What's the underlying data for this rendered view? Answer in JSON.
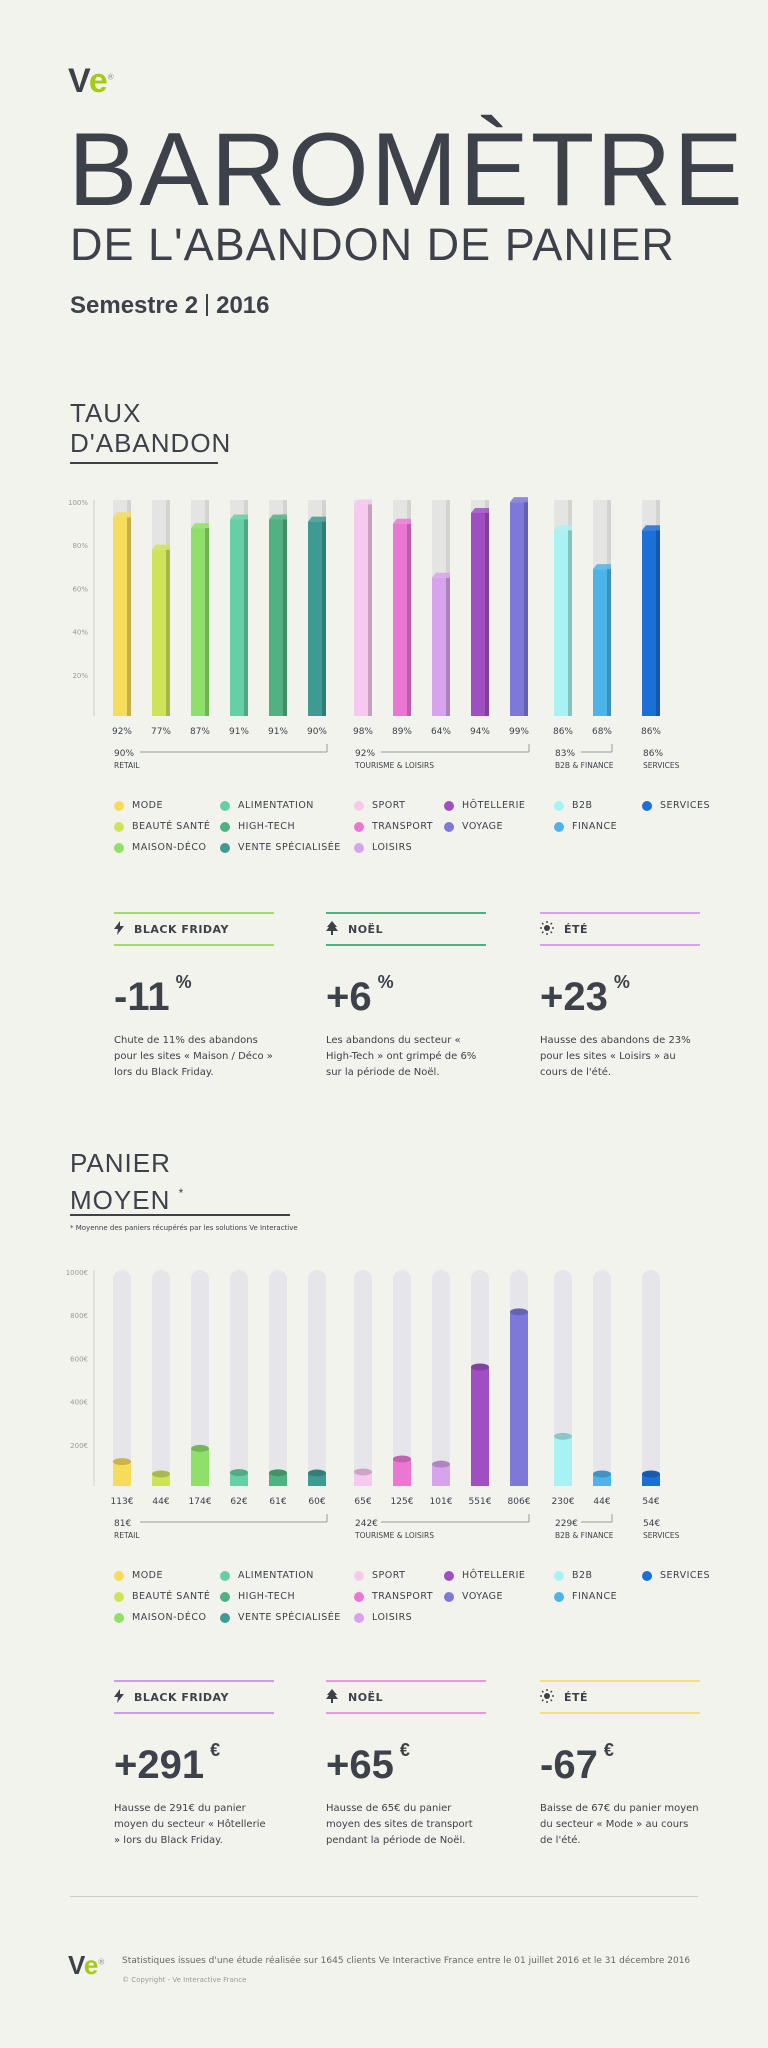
{
  "logo": {
    "v": "V",
    "e": "e",
    "reg": "®"
  },
  "title": {
    "big": "BAROMÈTRE",
    "sub": "DE L'ABANDON DE PANIER"
  },
  "semester": {
    "label": "Semestre 2",
    "year": "2016"
  },
  "section1": {
    "line1": "TAUX",
    "line2": "D'ABANDON"
  },
  "section2": {
    "line1": "PANIER",
    "line2": "MOYEN",
    "star": "*",
    "note": "* Moyenne des paniers récupérés par les solutions Ve Interactive"
  },
  "colors": {
    "MODE": "#f5dc5a",
    "BEAUTÉ SANTÉ": "#cfe35a",
    "MAISON-DÉCO": "#8fe06a",
    "ALIMENTATION": "#66cfa5",
    "HIGH-TECH": "#52b183",
    "VENTE SPÉCIALISÉE": "#3f9a94",
    "SPORT": "#f7c9ef",
    "TRANSPORT": "#ea78d2",
    "LOISIRS": "#d7a3ed",
    "HÔTELLERIE": "#9f4fc2",
    "VOYAGE": "#7e79d9",
    "B2B": "#a9f2f4",
    "FINANCE": "#4db4ea",
    "SERVICES": "#1c6fd6"
  },
  "chart_data": [
    {
      "type": "bar",
      "title": "TAUX D'ABANDON",
      "categories": [
        "MODE",
        "BEAUTÉ SANTÉ",
        "MAISON-DÉCO",
        "ALIMENTATION",
        "HIGH-TECH",
        "VENTE SPÉCIALISÉE",
        "SPORT",
        "TRANSPORT",
        "LOISIRS",
        "HÔTELLERIE",
        "VOYAGE",
        "B2B",
        "FINANCE",
        "SERVICES"
      ],
      "values": [
        92,
        77,
        87,
        91,
        91,
        90,
        98,
        89,
        64,
        94,
        99,
        86,
        68,
        86
      ],
      "value_labels": [
        "92%",
        "77%",
        "87%",
        "91%",
        "91%",
        "90%",
        "98%",
        "89%",
        "64%",
        "94%",
        "99%",
        "86%",
        "68%",
        "86%"
      ],
      "yticks": [
        "100%",
        "80%",
        "60%",
        "40%",
        "20%"
      ],
      "ylim": [
        0,
        100
      ],
      "groups": [
        {
          "name": "RETAIL",
          "total": "90%",
          "members": [
            0,
            1,
            2,
            3,
            4,
            5
          ]
        },
        {
          "name": "TOURISME & LOISIRS",
          "total": "92%",
          "members": [
            6,
            7,
            8,
            9,
            10
          ]
        },
        {
          "name": "B2B & FINANCE",
          "total": "83%",
          "members": [
            11,
            12
          ]
        },
        {
          "name": "SERVICES",
          "total": "86%",
          "members": [
            13
          ]
        }
      ]
    },
    {
      "type": "bar",
      "title": "PANIER MOYEN",
      "categories": [
        "MODE",
        "BEAUTÉ SANTÉ",
        "MAISON-DÉCO",
        "ALIMENTATION",
        "HIGH-TECH",
        "VENTE SPÉCIALISÉE",
        "SPORT",
        "TRANSPORT",
        "LOISIRS",
        "HÔTELLERIE",
        "VOYAGE",
        "B2B",
        "FINANCE",
        "SERVICES"
      ],
      "values": [
        113,
        44,
        174,
        62,
        61,
        60,
        65,
        125,
        101,
        551,
        806,
        230,
        44,
        54
      ],
      "value_labels": [
        "113€",
        "44€",
        "174€",
        "62€",
        "61€",
        "60€",
        "65€",
        "125€",
        "101€",
        "551€",
        "806€",
        "230€",
        "44€",
        "54€"
      ],
      "yticks": [
        "1000€",
        "800€",
        "600€",
        "400€",
        "200€"
      ],
      "ylim": [
        0,
        1000
      ],
      "groups": [
        {
          "name": "RETAIL",
          "total": "81€",
          "members": [
            0,
            1,
            2,
            3,
            4,
            5
          ]
        },
        {
          "name": "TOURISME & LOISIRS",
          "total": "242€",
          "members": [
            6,
            7,
            8,
            9,
            10
          ]
        },
        {
          "name": "B2B & FINANCE",
          "total": "229€",
          "members": [
            11,
            12
          ]
        },
        {
          "name": "SERVICES",
          "total": "54€",
          "members": [
            13
          ]
        }
      ]
    }
  ],
  "legend": [
    [
      "MODE",
      "BEAUTÉ SANTÉ",
      "MAISON-DÉCO"
    ],
    [
      "ALIMENTATION",
      "HIGH-TECH",
      "VENTE SPÉCIALISÉE"
    ],
    [
      "SPORT",
      "TRANSPORT",
      "LOISIRS"
    ],
    [
      "HÔTELLERIE",
      "VOYAGE"
    ],
    [
      "B2B",
      "FINANCE"
    ],
    [
      "SERVICES"
    ]
  ],
  "cards1": [
    {
      "title": "BLACK FRIDAY",
      "icon": "bolt-icon",
      "color": "#a6d96a",
      "value": "-11",
      "unit": "%",
      "text": "Chute de 11% des abandons pour les sites « Maison / Déco » lors du Black Friday."
    },
    {
      "title": "NOËL",
      "icon": "tree-icon",
      "color": "#52b183",
      "value": "+6",
      "unit": "%",
      "text": "Les abandons du secteur « High-Tech » ont grimpé de 6% sur la période de Noël."
    },
    {
      "title": "ÉTÉ",
      "icon": "sun-icon",
      "color": "#d7a3ed",
      "value": "+23",
      "unit": "%",
      "text": "Hausse des abandons de 23% pour les sites « Loisirs » au cours de l'été."
    }
  ],
  "cards2": [
    {
      "title": "BLACK FRIDAY",
      "icon": "bolt-icon",
      "color": "#c9a0e6",
      "value": "+291",
      "unit": "€",
      "text": "Hausse de 291€ du panier moyen du secteur « Hôtellerie » lors du Black Friday."
    },
    {
      "title": "NOËL",
      "icon": "tree-icon",
      "color": "#e79ad6",
      "value": "+65",
      "unit": "€",
      "text": "Hausse de 65€ du panier moyen des sites de transport pendant la période de Noël."
    },
    {
      "title": "ÉTÉ",
      "icon": "sun-icon",
      "color": "#f0e27a",
      "value": "-67",
      "unit": "€",
      "text": "Baisse de 67€ du panier moyen du secteur « Mode » au cours de l'été."
    }
  ],
  "footer": {
    "text": "Statistiques issues d'une étude réalisée sur 1645 clients Ve Interactive France entre le 01 juillet 2016 et le 31 décembre 2016",
    "copyright": "© Copyright - Ve Interactive France"
  }
}
